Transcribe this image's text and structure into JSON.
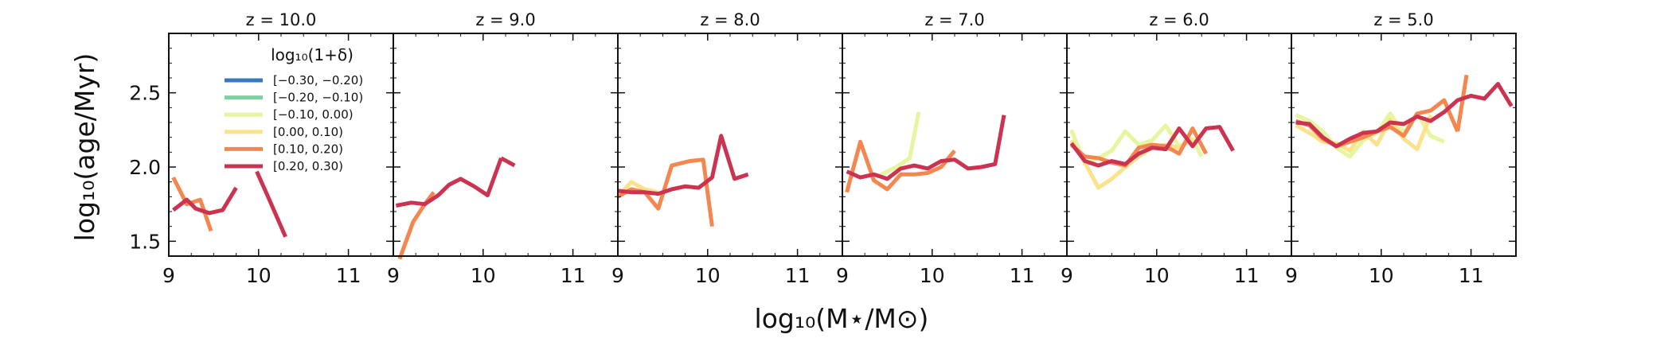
{
  "chart_data": {
    "type": "line",
    "xlabel": "log₁₀(M⋆/M⊙)",
    "ylabel": "log₁₀(age/Myr)",
    "xlim": [
      9.0,
      11.5
    ],
    "ylim": [
      1.4,
      2.9
    ],
    "xticks": [
      9,
      10,
      11
    ],
    "yticks": [
      1.5,
      2.0,
      2.5
    ],
    "xtick_labels": [
      "9",
      "10",
      "11"
    ],
    "ytick_labels": [
      "1.5",
      "2.0",
      "2.5"
    ],
    "legend": {
      "title": "log₁₀(1+δ)",
      "location": "upper-left of first panel",
      "entries": [
        {
          "label": "[−0.30, −0.20)",
          "color": "#3a78bd"
        },
        {
          "label": "[−0.20, −0.10)",
          "color": "#80cfa1"
        },
        {
          "label": "[−0.10, 0.00)",
          "color": "#e6f59e"
        },
        {
          "label": "[0.00, 0.10)",
          "color": "#fde28b"
        },
        {
          "label": "[0.10, 0.20)",
          "color": "#f4874f"
        },
        {
          "label": "[0.20, 0.30)",
          "color": "#cc3350"
        }
      ]
    },
    "panels": [
      {
        "title": "z = 10.0",
        "series": [
          {
            "bin": 4,
            "color": "#f4874f",
            "x": [
              9.05,
              9.2,
              9.35,
              9.47
            ],
            "y": [
              1.93,
              1.75,
              1.78,
              1.57
            ]
          },
          {
            "bin": 5,
            "color": "#cc3350",
            "x": [
              9.05,
              9.2,
              9.3,
              9.45,
              9.6,
              9.75
            ],
            "y": [
              1.71,
              1.78,
              1.72,
              1.69,
              1.71,
              1.86
            ]
          },
          {
            "bin": 5,
            "color": "#cc3350",
            "x": [
              9.98,
              10.12,
              10.3
            ],
            "y": [
              1.97,
              1.78,
              1.53
            ]
          }
        ]
      },
      {
        "title": "z = 9.0",
        "series": [
          {
            "bin": 4,
            "color": "#f4874f",
            "x": [
              9.07,
              9.22,
              9.35,
              9.45
            ],
            "y": [
              1.38,
              1.63,
              1.75,
              1.83
            ]
          },
          {
            "bin": 5,
            "color": "#cc3350",
            "x": [
              9.03,
              9.2,
              9.35,
              9.5,
              9.62,
              9.75,
              9.9,
              10.05,
              10.2
            ],
            "y": [
              1.74,
              1.76,
              1.75,
              1.81,
              1.88,
              1.92,
              1.87,
              1.81,
              2.06
            ]
          },
          {
            "bin": 5,
            "color": "#cc3350",
            "x": [
              10.2,
              10.35
            ],
            "y": [
              2.06,
              2.01
            ]
          }
        ]
      },
      {
        "title": "z = 8.0",
        "series": [
          {
            "bin": 3,
            "color": "#fde28b",
            "x": [
              9.0,
              9.15,
              9.3,
              9.45
            ],
            "y": [
              1.8,
              1.9,
              1.85,
              1.83
            ]
          },
          {
            "bin": 4,
            "color": "#f4874f",
            "x": [
              9.0,
              9.15,
              9.3,
              9.45,
              9.6,
              9.8,
              9.95,
              10.05
            ],
            "y": [
              1.8,
              1.85,
              1.83,
              1.72,
              2.01,
              2.04,
              2.05,
              1.6
            ]
          },
          {
            "bin": 5,
            "color": "#cc3350",
            "x": [
              9.0,
              9.15,
              9.3,
              9.45,
              9.6,
              9.75,
              9.9,
              10.05,
              10.15,
              10.3,
              10.45
            ],
            "y": [
              1.84,
              1.83,
              1.83,
              1.82,
              1.85,
              1.87,
              1.86,
              1.93,
              2.21,
              1.92,
              1.95
            ]
          }
        ]
      },
      {
        "title": "z = 7.0",
        "series": [
          {
            "bin": 2,
            "color": "#e6f59e",
            "x": [
              9.4,
              9.6,
              9.75,
              9.85
            ],
            "y": [
              1.94,
              2.0,
              2.06,
              2.37
            ]
          },
          {
            "bin": 4,
            "color": "#f4874f",
            "x": [
              9.05,
              9.2,
              9.35,
              9.5,
              9.65,
              9.8,
              9.95,
              10.1,
              10.25
            ],
            "y": [
              1.83,
              2.17,
              1.91,
              1.85,
              1.95,
              1.95,
              1.96,
              2.0,
              2.11
            ]
          },
          {
            "bin": 5,
            "color": "#cc3350",
            "x": [
              9.05,
              9.2,
              9.35,
              9.5,
              9.65,
              9.8,
              9.95,
              10.1,
              10.25,
              10.4,
              10.55,
              10.7,
              10.8
            ],
            "y": [
              1.97,
              1.93,
              1.95,
              1.92,
              1.99,
              2.01,
              1.99,
              2.04,
              2.05,
              1.99,
              2.0,
              2.02,
              2.35
            ]
          }
        ]
      },
      {
        "title": "z = 6.0",
        "series": [
          {
            "bin": 2,
            "color": "#e6f59e",
            "x": [
              9.05,
              9.2,
              9.35,
              9.5,
              9.65,
              9.8,
              9.95,
              10.1,
              10.25,
              10.4,
              10.5
            ],
            "y": [
              2.25,
              2.02,
              2.06,
              2.11,
              2.24,
              2.15,
              2.18,
              2.28,
              2.14,
              2.19,
              2.07
            ]
          },
          {
            "bin": 3,
            "color": "#fde28b",
            "x": [
              9.05,
              9.2,
              9.35,
              9.5,
              9.65,
              9.8,
              9.95,
              10.1,
              10.25,
              10.4
            ],
            "y": [
              2.18,
              2.03,
              1.86,
              1.92,
              2.0,
              2.07,
              2.13,
              2.15,
              2.13,
              2.19
            ]
          },
          {
            "bin": 4,
            "color": "#f4874f",
            "x": [
              9.05,
              9.2,
              9.35,
              9.5,
              9.65,
              9.8,
              9.95,
              10.1,
              10.25,
              10.4,
              10.55
            ],
            "y": [
              2.15,
              2.07,
              2.06,
              2.03,
              2.01,
              2.13,
              2.15,
              2.14,
              2.09,
              2.26,
              2.09
            ]
          },
          {
            "bin": 5,
            "color": "#cc3350",
            "x": [
              9.05,
              9.2,
              9.35,
              9.5,
              9.65,
              9.8,
              9.95,
              10.1,
              10.25,
              10.4,
              10.55,
              10.7,
              10.85
            ],
            "y": [
              2.16,
              2.04,
              2.01,
              2.04,
              2.02,
              2.09,
              2.13,
              2.12,
              2.26,
              2.14,
              2.26,
              2.27,
              2.11
            ]
          }
        ]
      },
      {
        "title": "z = 5.0",
        "series": [
          {
            "bin": 2,
            "color": "#e6f59e",
            "x": [
              9.05,
              9.2,
              9.35,
              9.5,
              9.65,
              9.8,
              9.95,
              10.1,
              10.25,
              10.4,
              10.55,
              10.7
            ],
            "y": [
              2.35,
              2.31,
              2.24,
              2.13,
              2.07,
              2.18,
              2.23,
              2.36,
              2.23,
              2.36,
              2.21,
              2.17
            ]
          },
          {
            "bin": 3,
            "color": "#fde28b",
            "x": [
              9.05,
              9.2,
              9.35,
              9.5,
              9.65,
              9.8,
              9.95,
              10.1,
              10.25,
              10.4,
              10.55
            ],
            "y": [
              2.28,
              2.23,
              2.17,
              2.16,
              2.11,
              2.24,
              2.15,
              2.32,
              2.19,
              2.12,
              2.35
            ]
          },
          {
            "bin": 4,
            "color": "#f4874f",
            "x": [
              9.05,
              9.2,
              9.35,
              9.5,
              9.65,
              9.8,
              9.95,
              10.1,
              10.25,
              10.4,
              10.55,
              10.7,
              10.85
            ],
            "y": [
              2.31,
              2.28,
              2.19,
              2.14,
              2.17,
              2.2,
              2.24,
              2.27,
              2.21,
              2.36,
              2.38,
              2.45,
              2.24
            ]
          },
          {
            "bin": 4,
            "color": "#f4874f",
            "x": [
              10.85,
              10.95
            ],
            "y": [
              2.24,
              2.62
            ]
          },
          {
            "bin": 5,
            "color": "#cc3350",
            "x": [
              9.05,
              9.2,
              9.35,
              9.5,
              9.65,
              9.8,
              9.95,
              10.1,
              10.25,
              10.4,
              10.55,
              10.7,
              10.85,
              11.0,
              11.15,
              11.3,
              11.45
            ],
            "y": [
              2.3,
              2.29,
              2.2,
              2.14,
              2.19,
              2.23,
              2.24,
              2.3,
              2.29,
              2.34,
              2.31,
              2.37,
              2.45,
              2.48,
              2.46,
              2.56,
              2.41
            ]
          }
        ]
      }
    ]
  }
}
